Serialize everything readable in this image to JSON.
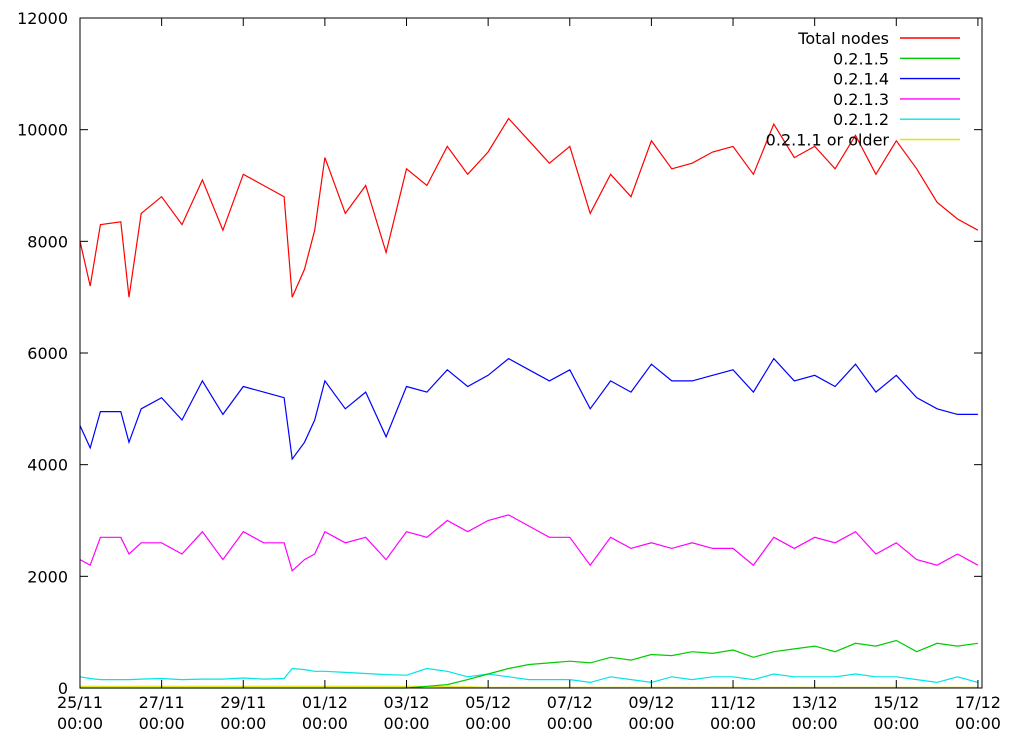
{
  "chart_data": {
    "type": "line",
    "title": "",
    "xlabel": "",
    "ylabel": "",
    "xlim_days": [
      0,
      22.1
    ],
    "ylim": [
      0,
      12000
    ],
    "grid": false,
    "legend_position": "top-right",
    "y_ticks": [
      0,
      2000,
      4000,
      6000,
      8000,
      10000,
      12000
    ],
    "x_ticks": [
      {
        "pos": 0,
        "date": "25/11",
        "time": "00:00"
      },
      {
        "pos": 2,
        "date": "27/11",
        "time": "00:00"
      },
      {
        "pos": 4,
        "date": "29/11",
        "time": "00:00"
      },
      {
        "pos": 6,
        "date": "01/12",
        "time": "00:00"
      },
      {
        "pos": 8,
        "date": "03/12",
        "time": "00:00"
      },
      {
        "pos": 10,
        "date": "05/12",
        "time": "00:00"
      },
      {
        "pos": 12,
        "date": "07/12",
        "time": "00:00"
      },
      {
        "pos": 14,
        "date": "09/12",
        "time": "00:00"
      },
      {
        "pos": 16,
        "date": "11/12",
        "time": "00:00"
      },
      {
        "pos": 18,
        "date": "13/12",
        "time": "00:00"
      },
      {
        "pos": 20,
        "date": "15/12",
        "time": "00:00"
      },
      {
        "pos": 22,
        "date": "17/12",
        "time": "00:00"
      }
    ],
    "x_days": [
      0,
      0.25,
      0.5,
      1.0,
      1.2,
      1.5,
      2.0,
      2.5,
      3.0,
      3.5,
      4.0,
      4.5,
      5.0,
      5.2,
      5.5,
      5.75,
      6.0,
      6.5,
      7.0,
      7.5,
      8.0,
      8.5,
      9.0,
      9.5,
      10.0,
      10.5,
      11.0,
      11.5,
      12.0,
      12.5,
      13.0,
      13.5,
      14.0,
      14.5,
      15.0,
      15.5,
      16.0,
      16.5,
      17.0,
      17.5,
      18.0,
      18.5,
      19.0,
      19.5,
      20.0,
      20.5,
      21.0,
      21.5,
      22.0
    ],
    "series": [
      {
        "name": "Total nodes",
        "color": "#ff0000",
        "values": [
          8000,
          7200,
          8300,
          8350,
          7000,
          8500,
          8800,
          8300,
          9100,
          8200,
          9200,
          9000,
          8800,
          7000,
          7500,
          8200,
          9500,
          8500,
          9000,
          7800,
          9300,
          9000,
          9700,
          9200,
          9600,
          10200,
          9800,
          9400,
          9700,
          8500,
          9200,
          8800,
          9800,
          9300,
          9400,
          9600,
          9700,
          9200,
          10100,
          9500,
          9700,
          9300,
          9900,
          9200,
          9800,
          9300,
          8700,
          8400,
          8200
        ]
      },
      {
        "name": "0.2.1.5",
        "color": "#00cc00",
        "values": [
          0,
          0,
          0,
          0,
          0,
          0,
          0,
          0,
          0,
          0,
          0,
          0,
          0,
          0,
          0,
          0,
          0,
          0,
          0,
          0,
          0,
          30,
          60,
          150,
          250,
          350,
          420,
          450,
          480,
          450,
          550,
          500,
          600,
          580,
          650,
          620,
          680,
          550,
          650,
          700,
          750,
          650,
          800,
          750,
          850,
          650,
          800,
          750,
          800
        ]
      },
      {
        "name": "0.2.1.4",
        "color": "#0000ff",
        "values": [
          4700,
          4300,
          4950,
          4950,
          4400,
          5000,
          5200,
          4800,
          5500,
          4900,
          5400,
          5300,
          5200,
          4100,
          4400,
          4800,
          5500,
          5000,
          5300,
          4500,
          5400,
          5300,
          5700,
          5400,
          5600,
          5900,
          5700,
          5500,
          5700,
          5000,
          5500,
          5300,
          5800,
          5500,
          5500,
          5600,
          5700,
          5300,
          5900,
          5500,
          5600,
          5400,
          5800,
          5300,
          5600,
          5200,
          5000,
          4900,
          4900
        ]
      },
      {
        "name": "0.2.1.3",
        "color": "#ff00ff",
        "values": [
          2300,
          2200,
          2700,
          2700,
          2400,
          2600,
          2600,
          2400,
          2800,
          2300,
          2800,
          2600,
          2600,
          2100,
          2300,
          2400,
          2800,
          2600,
          2700,
          2300,
          2800,
          2700,
          3000,
          2800,
          3000,
          3100,
          2900,
          2700,
          2700,
          2200,
          2700,
          2500,
          2600,
          2500,
          2600,
          2500,
          2500,
          2200,
          2700,
          2500,
          2700,
          2600,
          2800,
          2400,
          2600,
          2300,
          2200,
          2400,
          2200
        ]
      },
      {
        "name": "0.2.1.2",
        "color": "#00e5e5",
        "values": [
          200,
          170,
          150,
          150,
          150,
          160,
          170,
          150,
          160,
          160,
          180,
          160,
          170,
          350,
          330,
          300,
          300,
          280,
          260,
          240,
          230,
          350,
          300,
          200,
          250,
          200,
          150,
          150,
          150,
          100,
          200,
          150,
          100,
          200,
          150,
          200,
          200,
          150,
          250,
          200,
          200,
          200,
          250,
          200,
          200,
          150,
          100,
          200,
          100
        ]
      },
      {
        "name": "0.2.1.1 or older",
        "color": "#e5e500",
        "values": [
          30,
          30,
          30,
          30,
          30,
          30,
          30,
          30,
          30,
          30,
          30,
          30,
          30,
          30,
          30,
          30,
          30,
          30,
          30,
          30,
          30,
          30,
          20,
          20,
          10,
          10,
          10,
          10,
          10,
          10,
          10,
          10,
          10,
          10,
          10,
          10,
          10,
          10,
          10,
          10,
          10,
          10,
          10,
          10,
          10,
          10,
          10,
          10,
          10
        ]
      }
    ]
  }
}
